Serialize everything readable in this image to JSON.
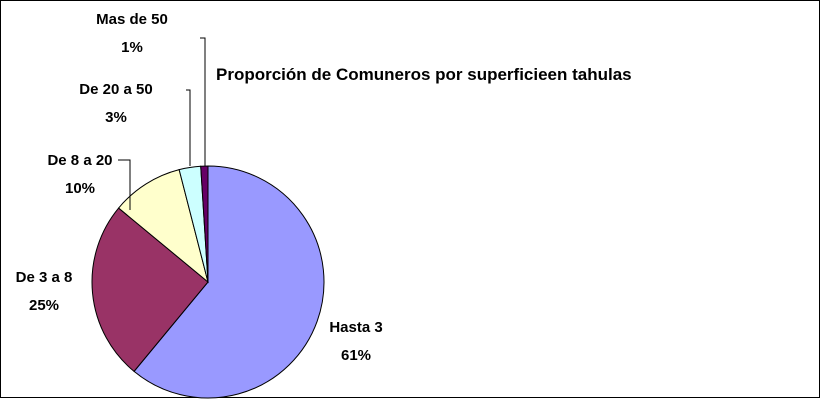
{
  "chart_data": {
    "type": "pie",
    "title": "Proporción de Comuneros por superficieen tahulas",
    "categories": [
      "Hasta 3",
      "De 3 a 8",
      "De 8 a 20",
      "De 20 a 50",
      "Mas de 50"
    ],
    "values": [
      61,
      25,
      10,
      3,
      1
    ],
    "value_labels": [
      "61%",
      "25%",
      "10%",
      "3%",
      "1%"
    ],
    "colors": [
      "#9999ff",
      "#993366",
      "#ffffcc",
      "#ccffff",
      "#660066"
    ],
    "legend": "none"
  }
}
